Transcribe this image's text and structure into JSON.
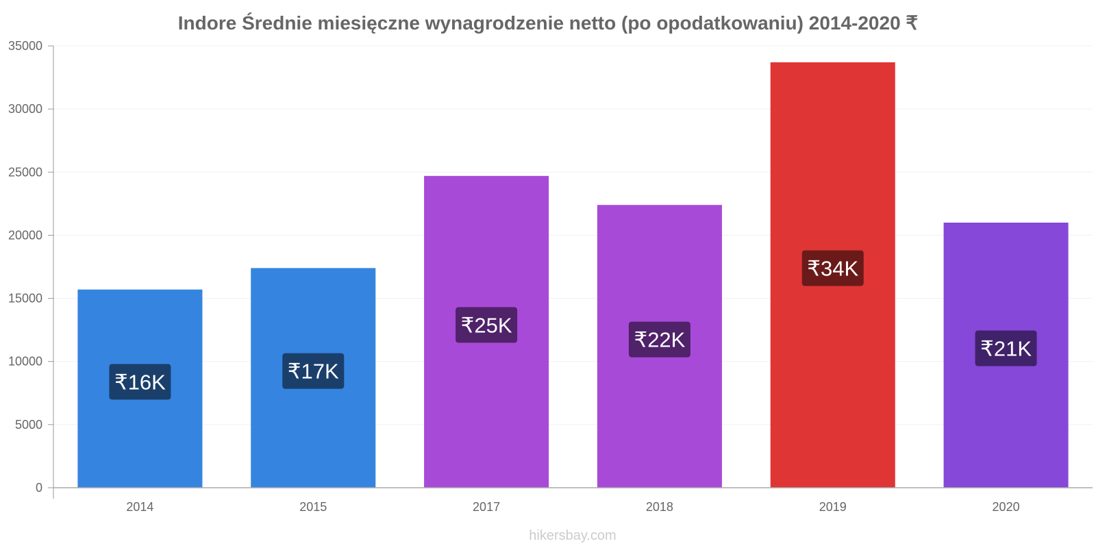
{
  "chart_data": {
    "type": "bar",
    "title": "Indore Średnie miesięczne wynagrodzenie netto (po opodatkowaniu) 2014-2020 ₹",
    "categories": [
      "2014",
      "2015",
      "2017",
      "2018",
      "2019",
      "2020"
    ],
    "values": [
      15700,
      17400,
      24700,
      22400,
      33700,
      21000
    ],
    "value_labels": [
      "₹16K",
      "₹17K",
      "₹25K",
      "₹22K",
      "₹34K",
      "₹21K"
    ],
    "bar_colors": [
      "#3584e0",
      "#3584e0",
      "#a84ad8",
      "#a84ad8",
      "#e03535",
      "#8548d8"
    ],
    "label_bg_colors": [
      "#1a3f6b",
      "#1a3f6b",
      "#50226a",
      "#50226a",
      "#6b1a1a",
      "#40226a"
    ],
    "ylim": [
      0,
      35000
    ],
    "yticks": [
      "0",
      "5000",
      "10000",
      "15000",
      "20000",
      "25000",
      "30000",
      "35000"
    ],
    "grid": true,
    "xlabel": "",
    "ylabel": ""
  },
  "footer": "hikersbay.com"
}
